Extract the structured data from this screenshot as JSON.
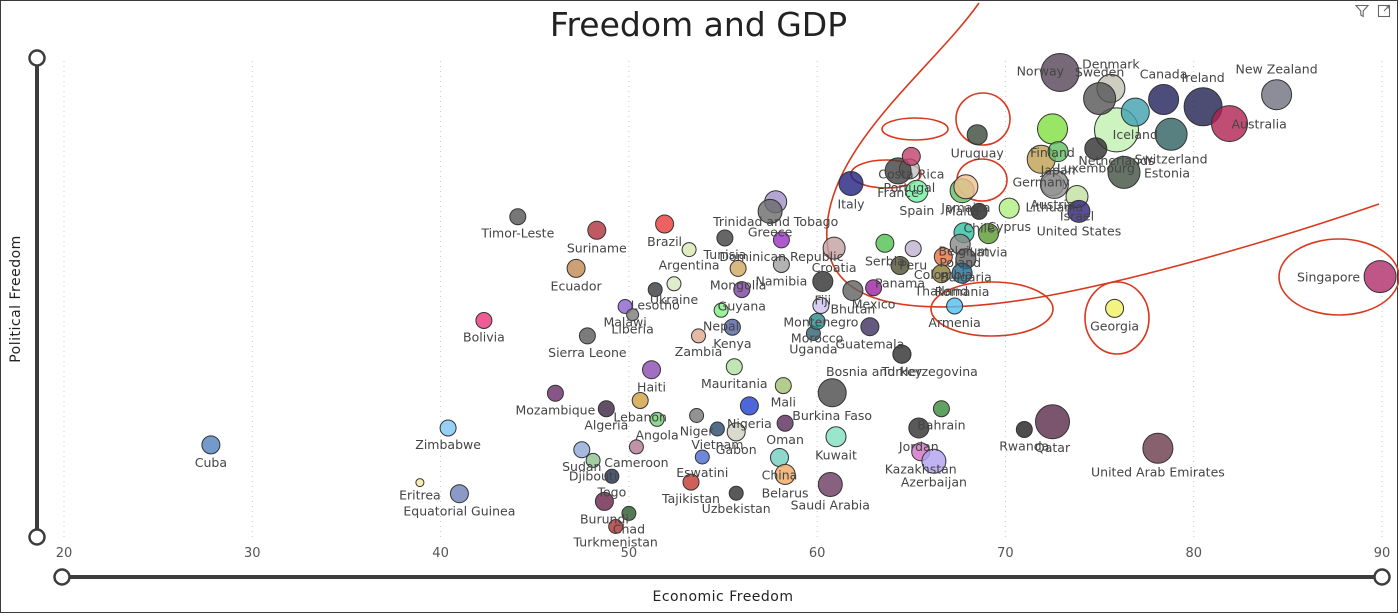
{
  "chart_data": {
    "type": "scatter",
    "title": "Freedom and GDP",
    "xlabel": "Economic Freedom",
    "ylabel": "Political Freedom",
    "xlim": [
      19.5,
      90
    ],
    "ylim": [
      0.5,
      100
    ],
    "x_ticks": [
      "20",
      "30",
      "40",
      "50",
      "60",
      "70",
      "80",
      "90"
    ],
    "grid": true,
    "points": [
      {
        "name": "Cuba",
        "x": 27.8,
        "y": 20.0,
        "r": 9,
        "color": "#4f81bd"
      },
      {
        "name": "Zimbabwe",
        "x": 40.4,
        "y": 23.5,
        "r": 8,
        "color": "#7cc4f4"
      },
      {
        "name": "Eritrea",
        "x": 38.9,
        "y": 12.2,
        "r": 4,
        "color": "#f5e7a1"
      },
      {
        "name": "Equatorial Guinea",
        "x": 41.0,
        "y": 9.9,
        "r": 9,
        "color": "#6d7fb8"
      },
      {
        "name": "Bolivia",
        "x": 42.3,
        "y": 45.8,
        "r": 8,
        "color": "#e8337a"
      },
      {
        "name": "Timor-Leste",
        "x": 44.1,
        "y": 67.3,
        "r": 8,
        "color": "#555555"
      },
      {
        "name": "Suriname",
        "x": 48.3,
        "y": 64.5,
        "r": 9,
        "color": "#b0303a"
      },
      {
        "name": "Ecuador",
        "x": 47.2,
        "y": 56.6,
        "r": 9,
        "color": "#c08a50"
      },
      {
        "name": "Sierra Leone",
        "x": 47.8,
        "y": 42.6,
        "r": 8,
        "color": "#5a5a5a"
      },
      {
        "name": "Mozambique",
        "x": 46.1,
        "y": 30.7,
        "r": 8,
        "color": "#6a2a6a"
      },
      {
        "name": "Algeria",
        "x": 48.8,
        "y": 27.5,
        "r": 8,
        "color": "#3a2440"
      },
      {
        "name": "Sudan",
        "x": 47.5,
        "y": 19.0,
        "r": 8,
        "color": "#8fa8d8"
      },
      {
        "name": "Djibouti",
        "x": 48.1,
        "y": 16.8,
        "r": 7,
        "color": "#8fbf8f"
      },
      {
        "name": "Burundi",
        "x": 48.7,
        "y": 8.3,
        "r": 9,
        "color": "#6b2248"
      },
      {
        "name": "Turkmenistan",
        "x": 49.3,
        "y": 3.1,
        "r": 7,
        "color": "#b03030"
      },
      {
        "name": "Chad",
        "x": 50.0,
        "y": 5.8,
        "r": 7,
        "color": "#2a5a2a"
      },
      {
        "name": "Togo",
        "x": 49.1,
        "y": 13.5,
        "r": 7,
        "color": "#203050"
      },
      {
        "name": "Cameroon",
        "x": 50.4,
        "y": 19.6,
        "r": 7,
        "color": "#b07890"
      },
      {
        "name": "Malawi",
        "x": 49.8,
        "y": 48.7,
        "r": 7,
        "color": "#8a60d0"
      },
      {
        "name": "Liberia",
        "x": 50.2,
        "y": 47.0,
        "r": 6,
        "color": "#7a7a7a"
      },
      {
        "name": "Ukraine",
        "x": 52.4,
        "y": 53.4,
        "r": 7,
        "color": "#d8e8c0"
      },
      {
        "name": "Lesotho",
        "x": 51.4,
        "y": 52.2,
        "r": 7,
        "color": "#3a3a3a"
      },
      {
        "name": "Zambia",
        "x": 53.7,
        "y": 42.6,
        "r": 7,
        "color": "#e0a890"
      },
      {
        "name": "Haiti",
        "x": 51.2,
        "y": 35.6,
        "r": 9,
        "color": "#8a4ab0"
      },
      {
        "name": "Lebanon",
        "x": 50.6,
        "y": 29.2,
        "r": 8,
        "color": "#d0a040"
      },
      {
        "name": "Angola",
        "x": 51.5,
        "y": 25.3,
        "r": 7,
        "color": "#70d070"
      },
      {
        "name": "Niger",
        "x": 53.6,
        "y": 26.1,
        "r": 7,
        "color": "#777777"
      },
      {
        "name": "Vietnam",
        "x": 54.7,
        "y": 23.3,
        "r": 7,
        "color": "#2a4a6a"
      },
      {
        "name": "Eswatini",
        "x": 53.9,
        "y": 17.5,
        "r": 7,
        "color": "#4a6ad0"
      },
      {
        "name": "Tajikistan",
        "x": 53.3,
        "y": 12.3,
        "r": 8,
        "color": "#c03a30"
      },
      {
        "name": "Uzbekistan",
        "x": 55.7,
        "y": 10.0,
        "r": 7,
        "color": "#303030"
      },
      {
        "name": "Brazil",
        "x": 51.9,
        "y": 65.8,
        "r": 9,
        "color": "#e83a3a"
      },
      {
        "name": "Argentina",
        "x": 53.2,
        "y": 60.5,
        "r": 7,
        "color": "#d8e8b0"
      },
      {
        "name": "Trinidad and Tobago",
        "x": 57.8,
        "y": 70.4,
        "r": 11,
        "color": "#a090c8"
      },
      {
        "name": "Tunisia",
        "x": 55.1,
        "y": 62.9,
        "r": 8,
        "color": "#404040"
      },
      {
        "name": "Greece",
        "x": 57.5,
        "y": 68.4,
        "r": 12,
        "color": "#6a6a6a"
      },
      {
        "name": "Dominican Republic",
        "x": 58.1,
        "y": 62.5,
        "r": 8,
        "color": "#9a30c0"
      },
      {
        "name": "Mongolia",
        "x": 55.8,
        "y": 56.6,
        "r": 8,
        "color": "#d0a860"
      },
      {
        "name": "Namibia",
        "x": 58.1,
        "y": 57.4,
        "r": 8,
        "color": "#a0a0a0"
      },
      {
        "name": "Guyana",
        "x": 56.0,
        "y": 52.2,
        "r": 8,
        "color": "#7a40a0"
      },
      {
        "name": "Nepal",
        "x": 54.9,
        "y": 47.9,
        "r": 7,
        "color": "#80f080"
      },
      {
        "name": "Kenya",
        "x": 55.5,
        "y": 44.4,
        "r": 8,
        "color": "#5060a0"
      },
      {
        "name": "Uganda",
        "x": 59.8,
        "y": 43.1,
        "r": 7,
        "color": "#306070"
      },
      {
        "name": "Mauritania",
        "x": 55.6,
        "y": 36.2,
        "r": 8,
        "color": "#b0e0a0"
      },
      {
        "name": "Mali",
        "x": 58.2,
        "y": 32.3,
        "r": 8,
        "color": "#a0c070"
      },
      {
        "name": "Nigeria",
        "x": 56.4,
        "y": 28.1,
        "r": 9,
        "color": "#2040d0"
      },
      {
        "name": "Gabon",
        "x": 55.7,
        "y": 22.7,
        "r": 9,
        "color": "#d0d0c0"
      },
      {
        "name": "China",
        "x": 58.0,
        "y": 17.4,
        "r": 9,
        "color": "#70d0c0"
      },
      {
        "name": "Belarus",
        "x": 58.3,
        "y": 13.9,
        "r": 10,
        "color": "#f0a860"
      },
      {
        "name": "Saudi Arabia",
        "x": 60.7,
        "y": 11.8,
        "r": 12,
        "color": "#6a3a60"
      },
      {
        "name": "Kuwait",
        "x": 61.0,
        "y": 21.7,
        "r": 10,
        "color": "#80e0c0"
      },
      {
        "name": "Oman",
        "x": 58.3,
        "y": 24.5,
        "r": 8,
        "color": "#5a2a5a"
      },
      {
        "name": "Burkina Faso",
        "x": 60.8,
        "y": 30.8,
        "r": 14,
        "color": "#4a4a4a"
      },
      {
        "name": "Montenegro",
        "x": 60.2,
        "y": 48.9,
        "r": 8,
        "color": "#d0c0f0"
      },
      {
        "name": "Morocco",
        "x": 60.0,
        "y": 45.6,
        "r": 8,
        "color": "#2a8a8a"
      },
      {
        "name": "Bosnia and Herzegovina",
        "x": 64.5,
        "y": 38.8,
        "r": 9,
        "color": "#555555"
      },
      {
        "name": "Guatemala",
        "x": 62.8,
        "y": 44.5,
        "r": 9,
        "color": "#403060"
      },
      {
        "name": "Mexico",
        "x": 63.0,
        "y": 52.6,
        "r": 8,
        "color": "#9a20a0"
      },
      {
        "name": "Bhutan",
        "x": 61.9,
        "y": 52.0,
        "r": 10,
        "color": "#606060"
      },
      {
        "name": "Fiji",
        "x": 60.3,
        "y": 53.9,
        "r": 10,
        "color": "#303030"
      },
      {
        "name": "Croatia",
        "x": 60.9,
        "y": 60.8,
        "r": 11,
        "color": "#c0a0a0"
      },
      {
        "name": "Serbia",
        "x": 63.6,
        "y": 61.8,
        "r": 9,
        "color": "#50c050"
      },
      {
        "name": "Peru",
        "x": 65.1,
        "y": 60.7,
        "r": 8,
        "color": "#c0b0d0"
      },
      {
        "name": "Panama",
        "x": 64.4,
        "y": 57.2,
        "r": 9,
        "color": "#505030"
      },
      {
        "name": "Colombia",
        "x": 66.7,
        "y": 59.0,
        "r": 9,
        "color": "#e87040"
      },
      {
        "name": "Belgium",
        "x": 67.8,
        "y": 64.0,
        "r": 10,
        "color": "#30c0a0"
      },
      {
        "name": "Poland",
        "x": 67.6,
        "y": 61.6,
        "r": 10,
        "color": "#8a8a8a"
      },
      {
        "name": "Latvia",
        "x": 69.1,
        "y": 63.8,
        "r": 10,
        "color": "#5a9a30"
      },
      {
        "name": "Bulgaria",
        "x": 67.9,
        "y": 58.6,
        "r": 10,
        "color": "#606060"
      },
      {
        "name": "Romania",
        "x": 67.7,
        "y": 55.6,
        "r": 10,
        "color": "#206a90"
      },
      {
        "name": "Thailand",
        "x": 66.6,
        "y": 55.5,
        "r": 9,
        "color": "#8a7a30"
      },
      {
        "name": "Armenia",
        "x": 67.3,
        "y": 48.8,
        "r": 8,
        "color": "#50c0f0"
      },
      {
        "name": "Italy",
        "x": 61.8,
        "y": 74.2,
        "r": 12,
        "color": "#202080"
      },
      {
        "name": "Portugal",
        "x": 64.9,
        "y": 77.2,
        "r": 10,
        "color": "#c0c0c0"
      },
      {
        "name": "Spain",
        "x": 65.3,
        "y": 72.6,
        "r": 11,
        "color": "#70f0a0"
      },
      {
        "name": "France",
        "x": 64.3,
        "y": 76.8,
        "r": 13,
        "color": "#404040"
      },
      {
        "name": "Costa Rica",
        "x": 65.0,
        "y": 79.8,
        "r": 9,
        "color": "#c0406a"
      },
      {
        "name": "Uruguay",
        "x": 68.5,
        "y": 84.3,
        "r": 10,
        "color": "#3a4a3a"
      },
      {
        "name": "Malta",
        "x": 67.7,
        "y": 72.7,
        "r": 12,
        "color": "#60c060"
      },
      {
        "name": "Jamaica",
        "x": 67.9,
        "y": 73.5,
        "r": 12,
        "color": "#f0c090"
      },
      {
        "name": "Cyprus",
        "x": 70.2,
        "y": 69.1,
        "r": 10,
        "color": "#b0f080"
      },
      {
        "name": "Chile",
        "x": 68.6,
        "y": 68.4,
        "r": 8,
        "color": "#202020"
      },
      {
        "name": "Germany",
        "x": 71.9,
        "y": 79.2,
        "r": 14,
        "color": "#c0a050"
      },
      {
        "name": "Austria",
        "x": 72.5,
        "y": 73.9,
        "r": 11,
        "color": "#a0a0a0"
      },
      {
        "name": "Israel",
        "x": 73.8,
        "y": 71.5,
        "r": 11,
        "color": "#c0e0a0"
      },
      {
        "name": "United States",
        "x": 73.9,
        "y": 68.4,
        "r": 11,
        "color": "#302080"
      },
      {
        "name": "Lithuania",
        "x": 72.6,
        "y": 74.0,
        "r": 14,
        "color": "#909090"
      },
      {
        "name": "Finland",
        "x": 72.5,
        "y": 85.5,
        "r": 15,
        "color": "#80e040"
      },
      {
        "name": "Japan",
        "x": 72.8,
        "y": 80.8,
        "r": 10,
        "color": "#60c060"
      },
      {
        "name": "Netherlands",
        "x": 75.9,
        "y": 85.3,
        "r": 22,
        "color": "#c0f0b0"
      },
      {
        "name": "Luxembourg",
        "x": 74.8,
        "y": 81.4,
        "r": 11,
        "color": "#303030"
      },
      {
        "name": "Estonia",
        "x": 76.3,
        "y": 76.5,
        "r": 16,
        "color": "#405040"
      },
      {
        "name": "Norway",
        "x": 72.9,
        "y": 97.2,
        "r": 19,
        "color": "#554455"
      },
      {
        "name": "Denmark",
        "x": 75.6,
        "y": 93.9,
        "r": 14,
        "color": "#c0c0b0"
      },
      {
        "name": "Sweden",
        "x": 75.0,
        "y": 91.8,
        "r": 16,
        "color": "#555555"
      },
      {
        "name": "Iceland",
        "x": 76.9,
        "y": 89.0,
        "r": 14,
        "color": "#40a0b0"
      },
      {
        "name": "Canada",
        "x": 78.4,
        "y": 91.6,
        "r": 15,
        "color": "#20205a"
      },
      {
        "name": "Switzerland",
        "x": 78.8,
        "y": 84.4,
        "r": 16,
        "color": "#306060"
      },
      {
        "name": "Ireland",
        "x": 80.5,
        "y": 90.1,
        "r": 19,
        "color": "#202050"
      },
      {
        "name": "Australia",
        "x": 81.9,
        "y": 86.6,
        "r": 18,
        "color": "#b02050"
      },
      {
        "name": "New Zealand",
        "x": 84.4,
        "y": 92.6,
        "r": 15,
        "color": "#707080"
      },
      {
        "name": "Georgia",
        "x": 75.8,
        "y": 48.3,
        "r": 9,
        "color": "#f0f060"
      },
      {
        "name": "Rwanda",
        "x": 71.0,
        "y": 23.2,
        "r": 8,
        "color": "#202020"
      },
      {
        "name": "Qatar",
        "x": 72.5,
        "y": 24.8,
        "r": 17,
        "color": "#5a2a4a"
      },
      {
        "name": "United Arab Emirates",
        "x": 78.1,
        "y": 19.3,
        "r": 15,
        "color": "#6a3a4a"
      },
      {
        "name": "Jordan",
        "x": 65.4,
        "y": 23.5,
        "r": 10,
        "color": "#303030"
      },
      {
        "name": "Kazakhstan",
        "x": 65.5,
        "y": 18.6,
        "r": 9,
        "color": "#d070c0"
      },
      {
        "name": "Azerbaijan",
        "x": 66.2,
        "y": 16.6,
        "r": 12,
        "color": "#b0a0f0"
      },
      {
        "name": "Bahrain",
        "x": 66.6,
        "y": 27.5,
        "r": 8,
        "color": "#3a8a3a"
      },
      {
        "name": "Turkey",
        "x": 64.5,
        "y": 38.8,
        "r": 9,
        "color": "#505050"
      },
      {
        "name": "Singapore",
        "x": 89.9,
        "y": 54.9,
        "r": 16,
        "color": "#b02a6a"
      }
    ]
  },
  "ui": {
    "filter_icon": "filter-icon",
    "focus_icon": "focus-mode-icon"
  }
}
